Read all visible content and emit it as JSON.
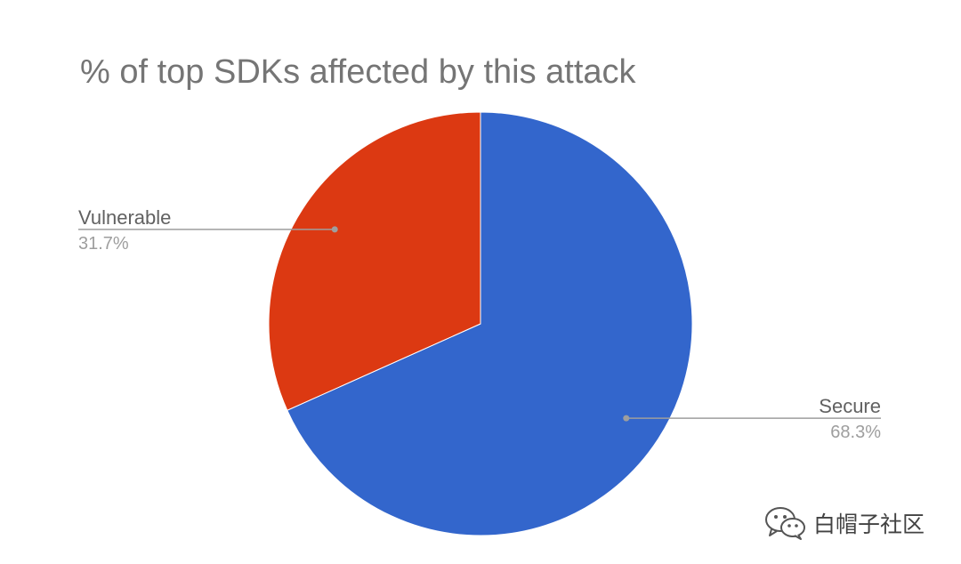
{
  "chart_data": {
    "type": "pie",
    "title": "% of top SDKs affected by this attack",
    "slices": [
      {
        "label": "Secure",
        "value": 68.3,
        "display": "68.3%",
        "color": "#3366cc"
      },
      {
        "label": "Vulnerable",
        "value": 31.7,
        "display": "31.7%",
        "color": "#dc3912"
      }
    ],
    "start": "12 o'clock",
    "direction": "clockwise",
    "legend": "none (labels with leader lines)"
  },
  "watermark": {
    "text": "白帽子社区",
    "icon": "wechat-icon"
  }
}
